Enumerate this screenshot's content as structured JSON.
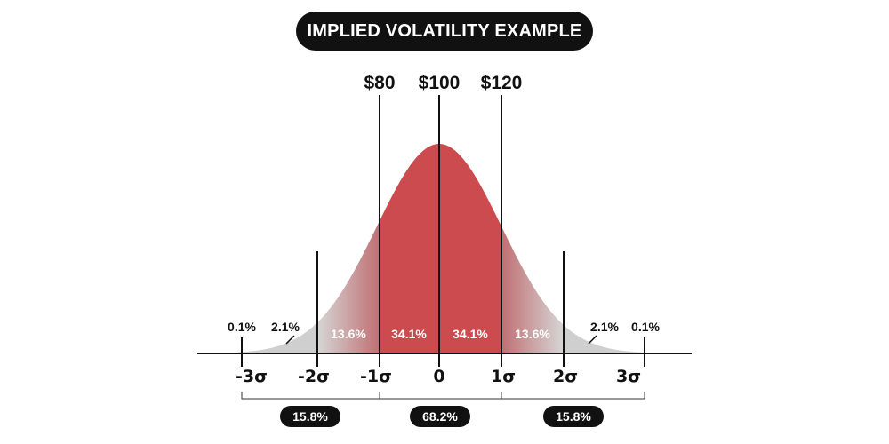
{
  "title": "IMPLIED VOLATILITY EXAMPLE",
  "prices": {
    "minus_one": "$80",
    "center": "$100",
    "plus_one": "$120"
  },
  "percentages": {
    "far_left": "0.1%",
    "left_2": "2.1%",
    "left_1": "13.6%",
    "center_left": "34.1%",
    "center_right": "34.1%",
    "right_1": "13.6%",
    "right_2": "2.1%",
    "far_right": "0.1%"
  },
  "sigma_labels": [
    "-3σ",
    "-2σ",
    "-1σ",
    "0",
    "1σ",
    "2σ",
    "3σ"
  ],
  "ranges": {
    "left": "15.8%",
    "middle": "68.2%",
    "right": "15.8%"
  },
  "colors": {
    "core_red": "#cc4b4f",
    "mid_red": "#c08a8c",
    "tail_gray": "#c9c9c9",
    "ink": "#111111"
  }
}
